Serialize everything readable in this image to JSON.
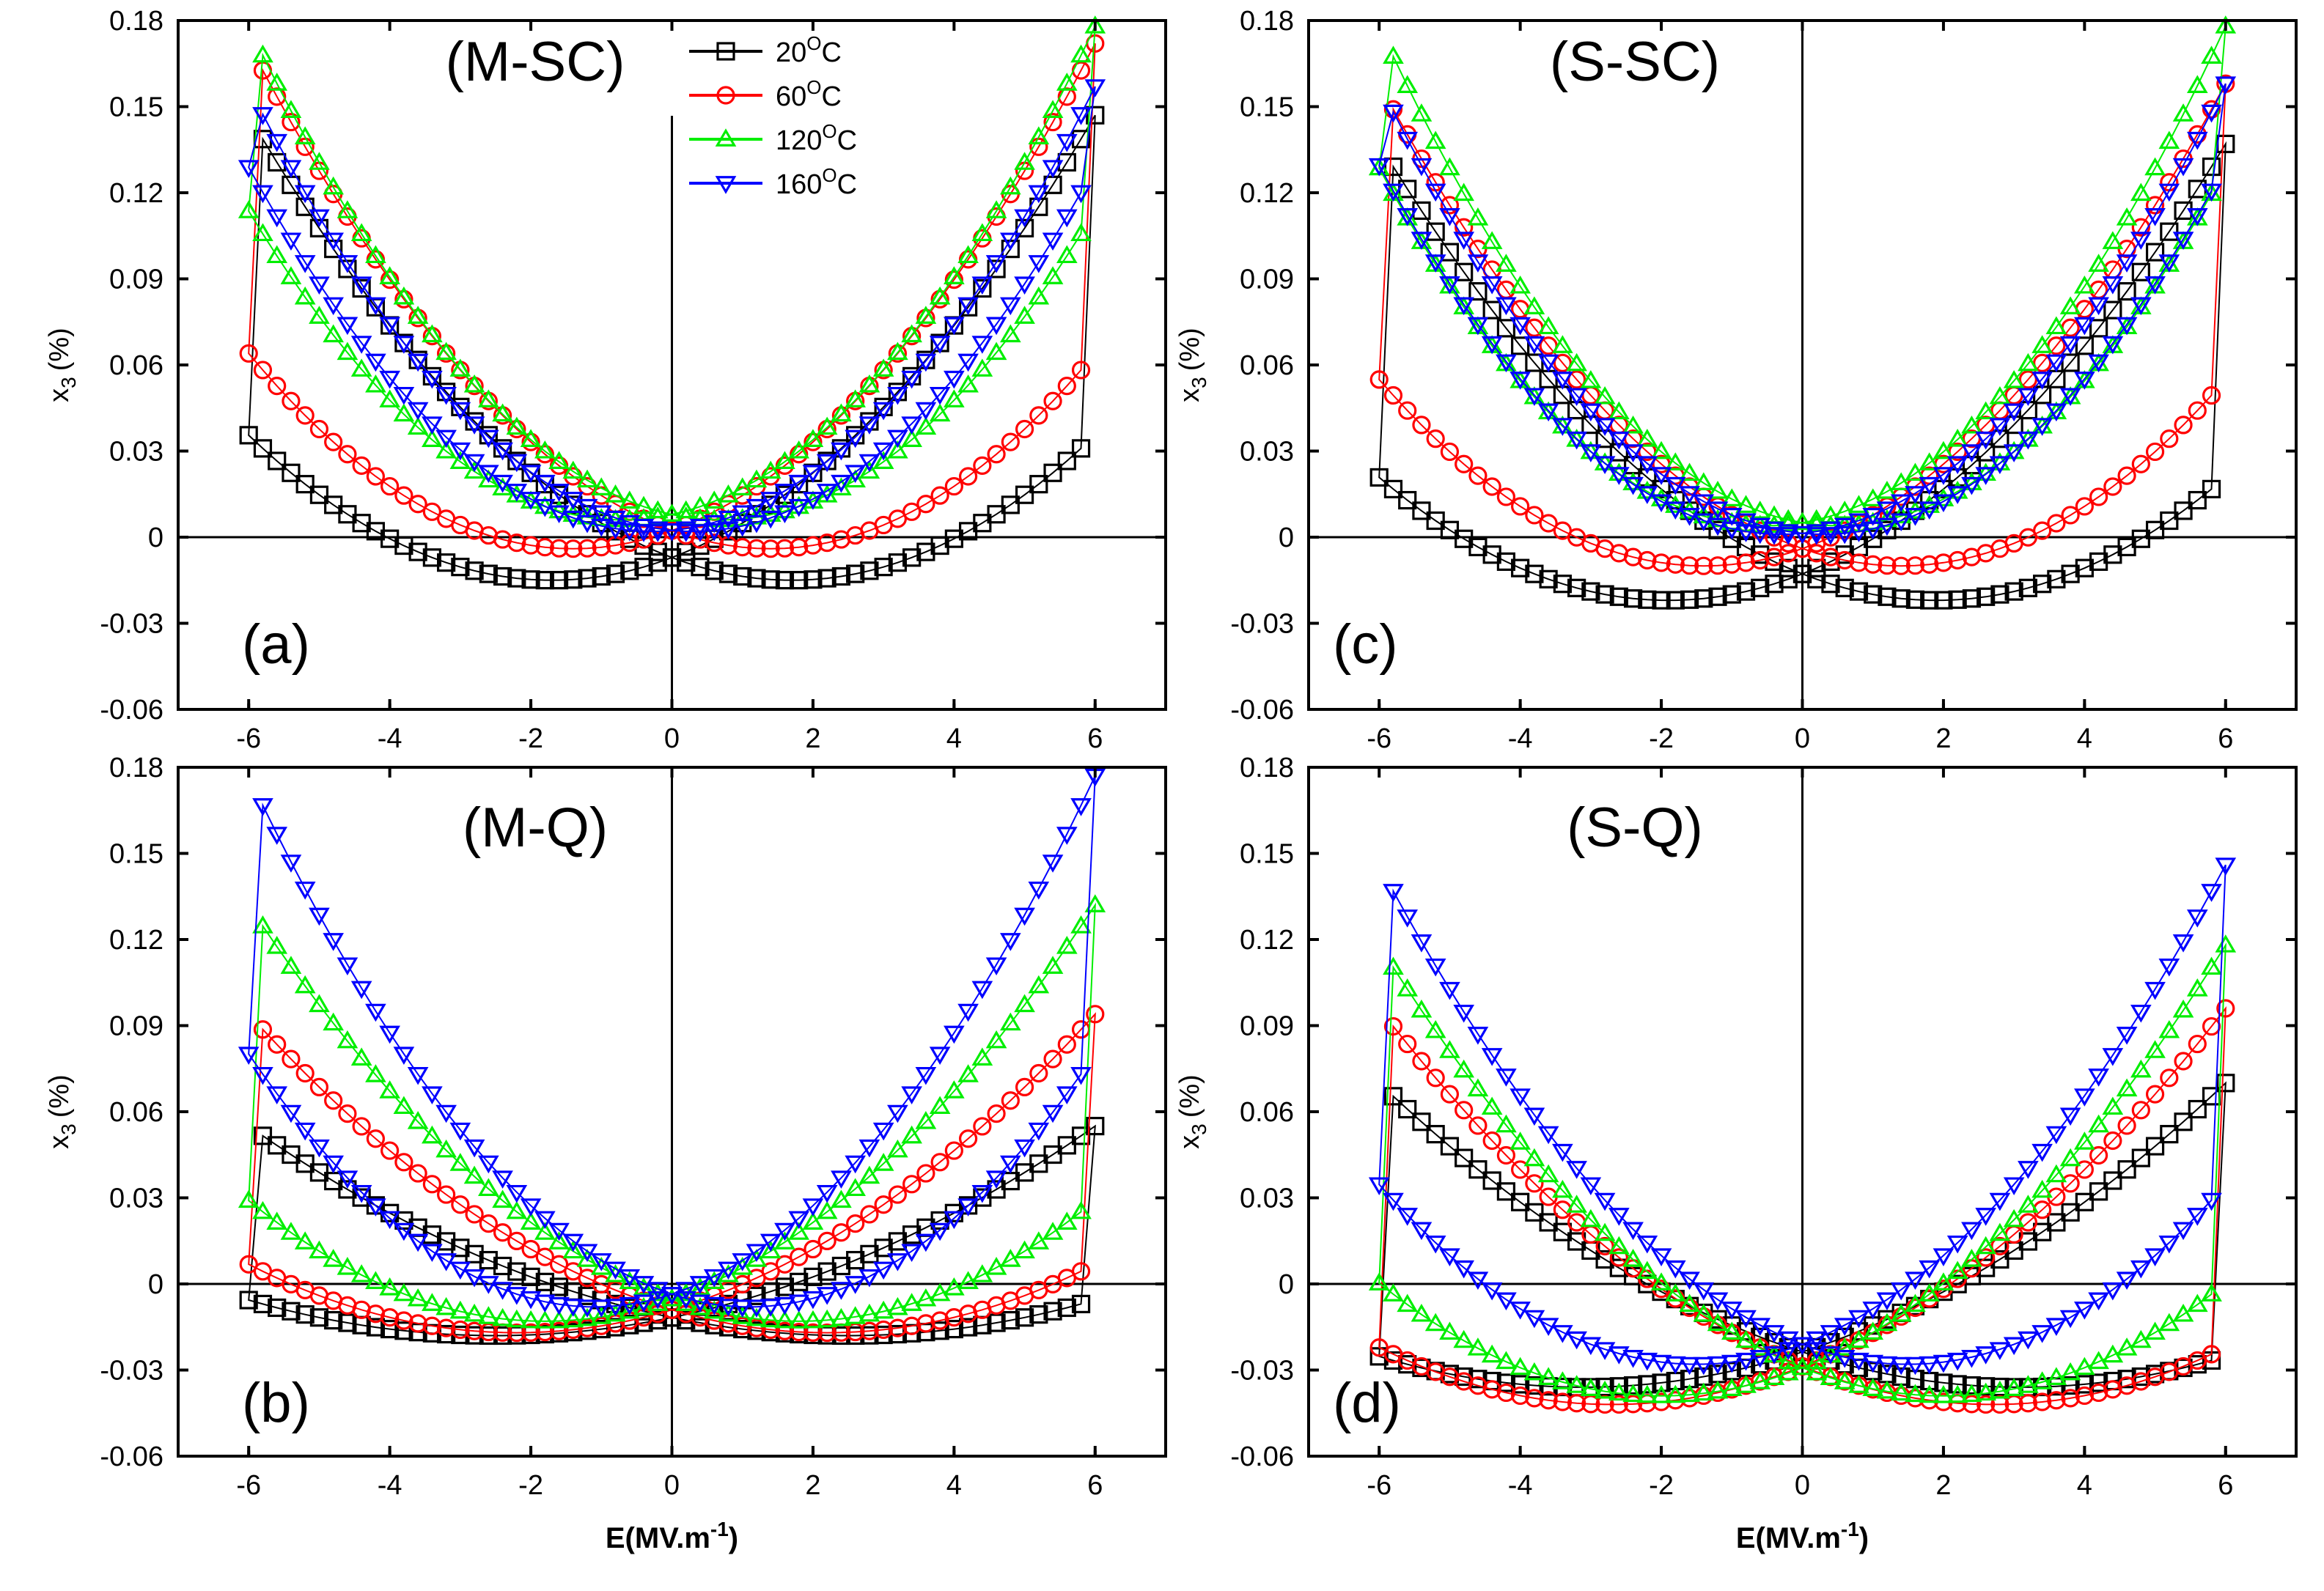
{
  "legend": [
    {
      "label": "20",
      "unit": "C",
      "sup": "O",
      "color": "#000000",
      "marker": "square"
    },
    {
      "label": "60",
      "unit": "C",
      "sup": "O",
      "color": "#ff0000",
      "marker": "circle"
    },
    {
      "label": "120",
      "unit": "C",
      "sup": "O",
      "color": "#00ee00",
      "marker": "triangle-up"
    },
    {
      "label": "160",
      "unit": "C",
      "sup": "O",
      "color": "#0000ff",
      "marker": "triangle-down"
    }
  ],
  "axis_text": {
    "ylabel_main": "x",
    "ylabel_sub": "3",
    "ylabel_unit": "(%)",
    "xlabel": "E(MV.m",
    "xlabel_sup": "-1",
    "xlabel_close": ")"
  },
  "chart_data": [
    {
      "id": "a",
      "letter": "(a)",
      "title": "(M-SC)",
      "type": "scatter",
      "xlim": [
        -7,
        7
      ],
      "ylim": [
        -0.06,
        0.18
      ],
      "xticks": [
        -6,
        -4,
        -2,
        0,
        2,
        4,
        6
      ],
      "xtick_labels": [
        "-6",
        "-4",
        "-2",
        "0",
        "2",
        "4",
        "6"
      ],
      "yticks": [
        -0.06,
        -0.03,
        0,
        0.03,
        0.06,
        0.09,
        0.12,
        0.15,
        0.18
      ],
      "ytick_labels": [
        "-0.06",
        "-0.03",
        "0",
        "0.03",
        "0.06",
        "0.09",
        "0.12",
        "0.15",
        "0.18"
      ],
      "series": [
        {
          "name": "20°C",
          "color": "#000000",
          "marker": "square",
          "ymax": 0.147,
          "dmin": -0.015,
          "ec": 1.7,
          "inner": 0.022,
          "base": 0.0,
          "count": 120
        },
        {
          "name": "60°C",
          "color": "#ff0000",
          "marker": "circle",
          "ymax": 0.172,
          "dmin": -0.004,
          "ec": 1.4,
          "inner": 0.018,
          "base": 0.0,
          "count": 120
        },
        {
          "name": "120°C",
          "color": "#00ee00",
          "marker": "triangle-up",
          "ymax": 0.178,
          "dmin": 0.006,
          "ec": 0.7,
          "inner": 0.01,
          "base": 0.004,
          "count": 120
        },
        {
          "name": "160°C",
          "color": "#0000ff",
          "marker": "triangle-down",
          "ymax": 0.157,
          "dmin": 0.002,
          "ec": 0.3,
          "inner": 0.006,
          "base": 0.001,
          "count": 120
        }
      ]
    },
    {
      "id": "c",
      "letter": "(c)",
      "title": "(S-SC)",
      "type": "scatter",
      "xlim": [
        -7,
        7
      ],
      "ylim": [
        -0.06,
        0.18
      ],
      "xticks": [
        -6,
        -4,
        -2,
        0,
        2,
        4,
        6
      ],
      "xtick_labels": [
        "-6",
        "-4",
        "-2",
        "0",
        "2",
        "4",
        "6"
      ],
      "yticks": [
        -0.06,
        -0.03,
        0,
        0.03,
        0.06,
        0.09,
        0.12,
        0.15,
        0.18
      ],
      "ytick_labels": [
        "-0.06",
        "-0.03",
        "0",
        "0.03",
        "0.06",
        "0.09",
        "0.12",
        "0.15",
        "0.18"
      ],
      "series": [
        {
          "name": "20°C",
          "color": "#000000",
          "marker": "square",
          "ymax": 0.137,
          "dmin": -0.022,
          "ec": 1.9,
          "inner": 0.028,
          "base": 0.0,
          "count": 120
        },
        {
          "name": "60°C",
          "color": "#ff0000",
          "marker": "circle",
          "ymax": 0.158,
          "dmin": -0.01,
          "ec": 1.4,
          "inner": 0.02,
          "base": 0.0,
          "count": 120
        },
        {
          "name": "120°C",
          "color": "#00ee00",
          "marker": "triangle-up",
          "ymax": 0.178,
          "dmin": 0.004,
          "ec": 0.5,
          "inner": 0.012,
          "base": 0.003,
          "count": 120
        },
        {
          "name": "160°C",
          "color": "#0000ff",
          "marker": "triangle-down",
          "ymax": 0.158,
          "dmin": 0.001,
          "ec": 0.3,
          "inner": 0.006,
          "base": 0.0,
          "count": 120
        }
      ]
    },
    {
      "id": "b",
      "letter": "(b)",
      "title": "(M-Q)",
      "type": "scatter",
      "xlim": [
        -7,
        7
      ],
      "ylim": [
        -0.06,
        0.18
      ],
      "xticks": [
        -6,
        -4,
        -2,
        0,
        2,
        4,
        6
      ],
      "xtick_labels": [
        "-6",
        "-4",
        "-2",
        "0",
        "2",
        "4",
        "6"
      ],
      "yticks": [
        -0.06,
        -0.03,
        0,
        0.03,
        0.06,
        0.09,
        0.12,
        0.15,
        0.18
      ],
      "ytick_labels": [
        "-0.06",
        "-0.03",
        "0",
        "0.03",
        "0.06",
        "0.09",
        "0.12",
        "0.15",
        "0.18"
      ],
      "series": [
        {
          "name": "20°C",
          "color": "#000000",
          "marker": "square",
          "ymax": 0.055,
          "dmin": -0.018,
          "ec": 2.5,
          "inner": 0.005,
          "base": 0.004,
          "count": 120
        },
        {
          "name": "60°C",
          "color": "#ff0000",
          "marker": "circle",
          "ymax": 0.094,
          "dmin": -0.017,
          "ec": 2.2,
          "inner": 0.006,
          "base": 0.004,
          "count": 120
        },
        {
          "name": "120°C",
          "color": "#00ee00",
          "marker": "triangle-up",
          "ymax": 0.132,
          "dmin": -0.013,
          "ec": 1.8,
          "inner": 0.006,
          "base": 0.004,
          "count": 120
        },
        {
          "name": "160°C",
          "color": "#0000ff",
          "marker": "triangle-down",
          "ymax": 0.177,
          "dmin": -0.008,
          "ec": 1.1,
          "inner": 0.008,
          "base": 0.004,
          "count": 120
        }
      ]
    },
    {
      "id": "d",
      "letter": "(d)",
      "title": "(S-Q)",
      "type": "scatter",
      "xlim": [
        -7,
        7
      ],
      "ylim": [
        -0.06,
        0.18
      ],
      "xticks": [
        -6,
        -4,
        -2,
        0,
        2,
        4,
        6
      ],
      "xtick_labels": [
        "-6",
        "-4",
        "-2",
        "0",
        "2",
        "4",
        "6"
      ],
      "yticks": [
        -0.06,
        -0.03,
        0,
        0.03,
        0.06,
        0.09,
        0.12,
        0.15,
        0.18
      ],
      "ytick_labels": [
        "-0.06",
        "-0.03",
        "0",
        "0.03",
        "0.06",
        "0.09",
        "0.12",
        "0.15",
        "0.18"
      ],
      "series": [
        {
          "name": "20°C",
          "color": "#000000",
          "marker": "square",
          "ymax": 0.07,
          "dmin": -0.036,
          "ec": 3.1,
          "inner": 0.008,
          "base": 0.006,
          "count": 120
        },
        {
          "name": "60°C",
          "color": "#ff0000",
          "marker": "circle",
          "ymax": 0.096,
          "dmin": -0.042,
          "ec": 2.7,
          "inner": 0.008,
          "base": 0.006,
          "count": 120
        },
        {
          "name": "120°C",
          "color": "#00ee00",
          "marker": "triangle-up",
          "ymax": 0.118,
          "dmin": -0.039,
          "ec": 2.0,
          "inner": 0.009,
          "base": 0.006,
          "count": 120
        },
        {
          "name": "160°C",
          "color": "#0000ff",
          "marker": "triangle-down",
          "ymax": 0.146,
          "dmin": -0.028,
          "ec": 1.5,
          "inner": 0.01,
          "base": 0.006,
          "count": 120
        }
      ]
    }
  ]
}
